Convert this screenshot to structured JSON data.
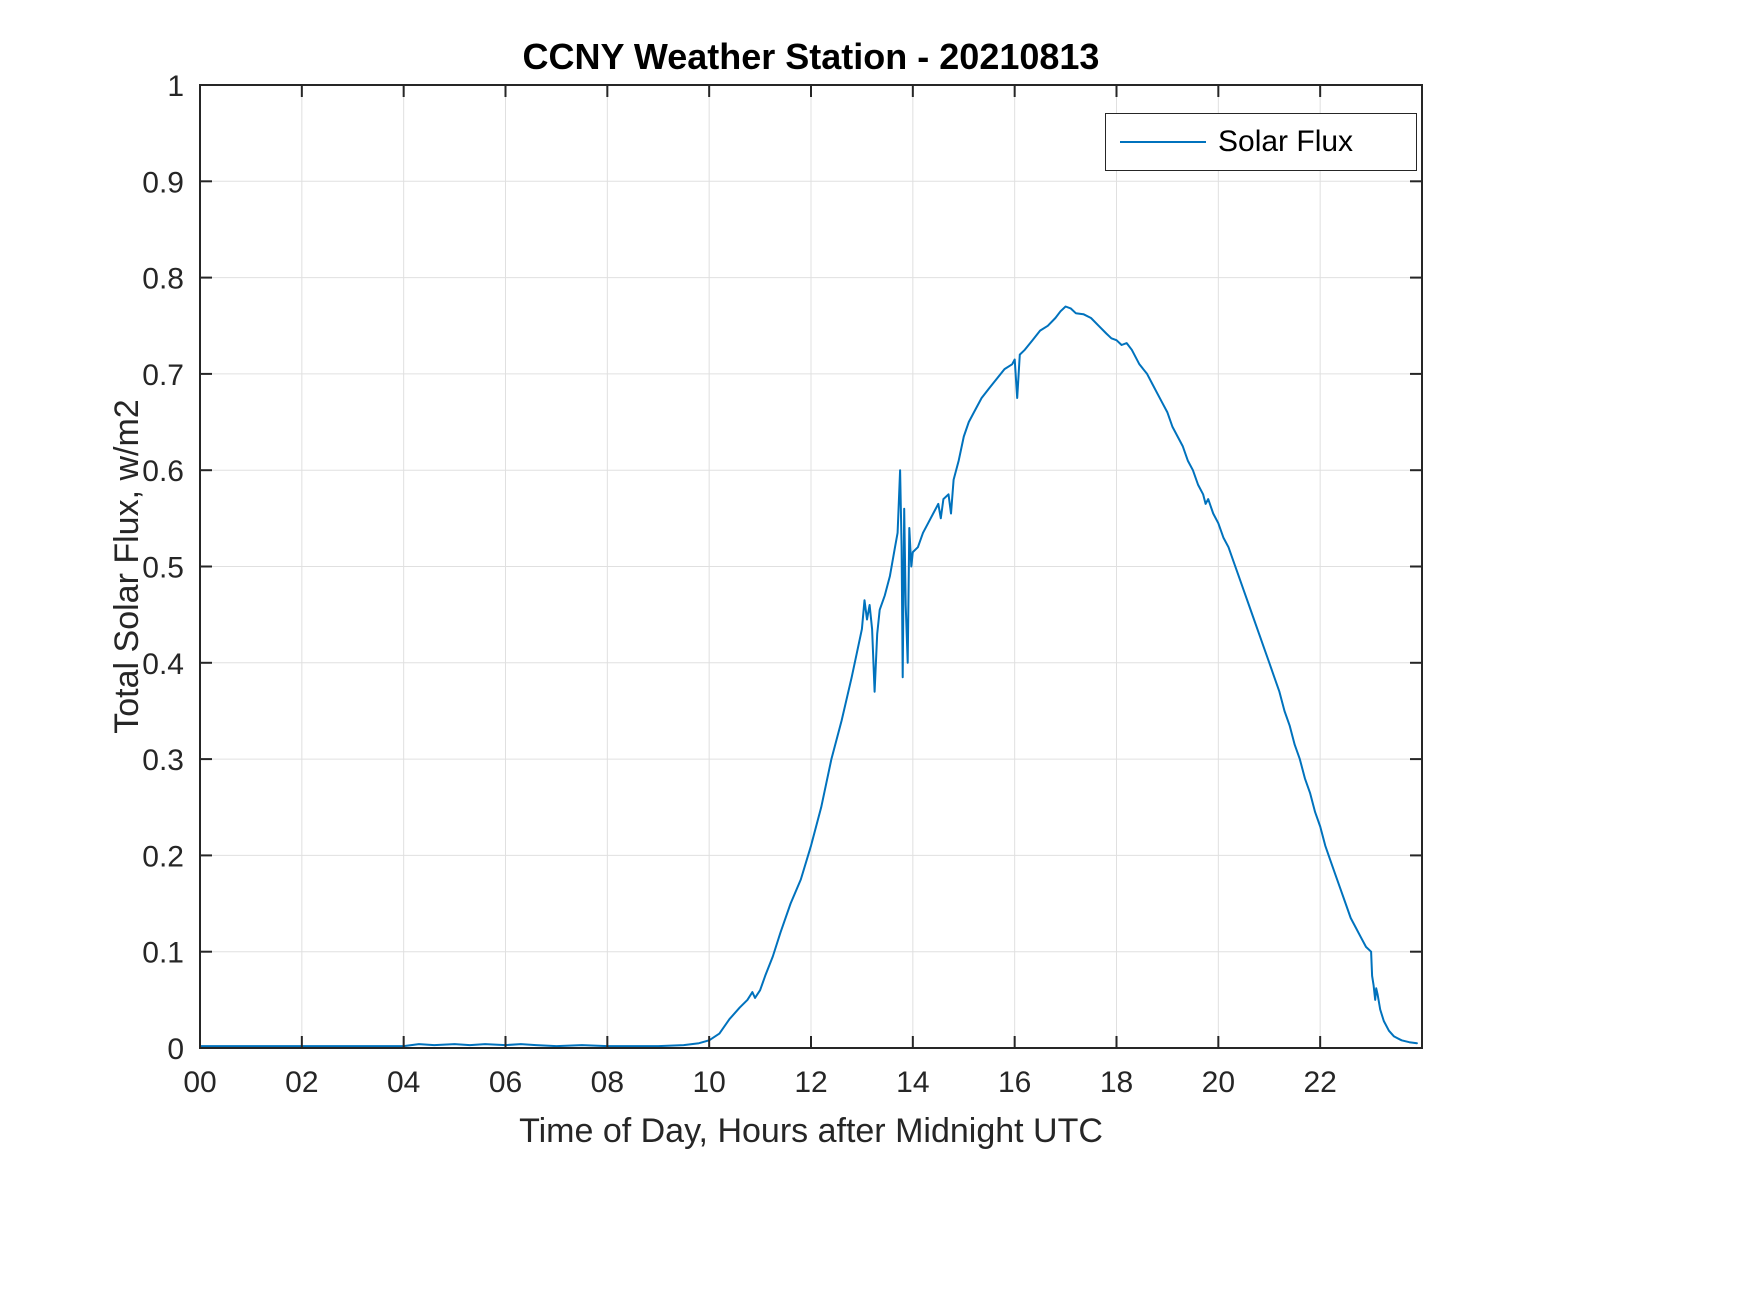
{
  "chart_data": {
    "type": "line",
    "title": "CCNY Weather Station - 20210813",
    "xlabel": "Time of Day, Hours after Midnight UTC",
    "ylabel": "Total Solar Flux, w/m2",
    "xlim": [
      0,
      24
    ],
    "ylim": [
      0,
      1
    ],
    "grid": true,
    "grid_color": "#e0e0e0",
    "axis_color": "#262626",
    "xticks": {
      "values": [
        0,
        2,
        4,
        6,
        8,
        10,
        12,
        14,
        16,
        18,
        20,
        22
      ],
      "labels": [
        "00",
        "02",
        "04",
        "06",
        "08",
        "10",
        "12",
        "14",
        "16",
        "18",
        "20",
        "22"
      ]
    },
    "yticks": {
      "values": [
        0,
        0.1,
        0.2,
        0.3,
        0.4,
        0.5,
        0.6,
        0.7,
        0.8,
        0.9,
        1
      ],
      "labels": [
        "0",
        "0.1",
        "0.2",
        "0.3",
        "0.4",
        "0.5",
        "0.6",
        "0.7",
        "0.8",
        "0.9",
        "1"
      ]
    },
    "legend": {
      "position": "top-right",
      "entries": [
        {
          "label": "Solar Flux",
          "color": "#0072BD"
        }
      ]
    },
    "series": [
      {
        "name": "Solar Flux",
        "color": "#0072BD",
        "points": [
          [
            0,
            0.002
          ],
          [
            0.5,
            0.002
          ],
          [
            1,
            0.002
          ],
          [
            1.5,
            0.002
          ],
          [
            2,
            0.002
          ],
          [
            2.5,
            0.002
          ],
          [
            3,
            0.002
          ],
          [
            3.5,
            0.002
          ],
          [
            4,
            0.002
          ],
          [
            4.3,
            0.004
          ],
          [
            4.6,
            0.003
          ],
          [
            5,
            0.004
          ],
          [
            5.3,
            0.003
          ],
          [
            5.6,
            0.004
          ],
          [
            6,
            0.003
          ],
          [
            6.3,
            0.004
          ],
          [
            6.6,
            0.003
          ],
          [
            7,
            0.002
          ],
          [
            7.5,
            0.003
          ],
          [
            8,
            0.002
          ],
          [
            8.5,
            0.002
          ],
          [
            9,
            0.002
          ],
          [
            9.5,
            0.003
          ],
          [
            9.8,
            0.005
          ],
          [
            10,
            0.008
          ],
          [
            10.2,
            0.015
          ],
          [
            10.4,
            0.03
          ],
          [
            10.6,
            0.042
          ],
          [
            10.75,
            0.05
          ],
          [
            10.85,
            0.058
          ],
          [
            10.9,
            0.052
          ],
          [
            11,
            0.06
          ],
          [
            11.1,
            0.075
          ],
          [
            11.25,
            0.095
          ],
          [
            11.4,
            0.12
          ],
          [
            11.6,
            0.15
          ],
          [
            11.8,
            0.175
          ],
          [
            12,
            0.21
          ],
          [
            12.2,
            0.25
          ],
          [
            12.4,
            0.3
          ],
          [
            12.6,
            0.34
          ],
          [
            12.8,
            0.385
          ],
          [
            12.9,
            0.41
          ],
          [
            13,
            0.435
          ],
          [
            13.05,
            0.465
          ],
          [
            13.1,
            0.445
          ],
          [
            13.15,
            0.46
          ],
          [
            13.2,
            0.435
          ],
          [
            13.25,
            0.37
          ],
          [
            13.3,
            0.43
          ],
          [
            13.35,
            0.455
          ],
          [
            13.45,
            0.47
          ],
          [
            13.55,
            0.49
          ],
          [
            13.65,
            0.52
          ],
          [
            13.7,
            0.535
          ],
          [
            13.75,
            0.6
          ],
          [
            13.78,
            0.52
          ],
          [
            13.8,
            0.385
          ],
          [
            13.83,
            0.56
          ],
          [
            13.86,
            0.46
          ],
          [
            13.9,
            0.4
          ],
          [
            13.93,
            0.54
          ],
          [
            13.97,
            0.5
          ],
          [
            14,
            0.515
          ],
          [
            14.1,
            0.52
          ],
          [
            14.2,
            0.535
          ],
          [
            14.3,
            0.545
          ],
          [
            14.4,
            0.555
          ],
          [
            14.5,
            0.565
          ],
          [
            14.55,
            0.55
          ],
          [
            14.6,
            0.57
          ],
          [
            14.7,
            0.575
          ],
          [
            14.75,
            0.555
          ],
          [
            14.8,
            0.59
          ],
          [
            14.9,
            0.61
          ],
          [
            15,
            0.635
          ],
          [
            15.1,
            0.65
          ],
          [
            15.2,
            0.66
          ],
          [
            15.35,
            0.675
          ],
          [
            15.5,
            0.685
          ],
          [
            15.65,
            0.695
          ],
          [
            15.8,
            0.705
          ],
          [
            15.95,
            0.71
          ],
          [
            16,
            0.715
          ],
          [
            16.05,
            0.675
          ],
          [
            16.1,
            0.72
          ],
          [
            16.2,
            0.725
          ],
          [
            16.35,
            0.735
          ],
          [
            16.5,
            0.745
          ],
          [
            16.65,
            0.75
          ],
          [
            16.8,
            0.758
          ],
          [
            16.9,
            0.765
          ],
          [
            17,
            0.77
          ],
          [
            17.1,
            0.768
          ],
          [
            17.2,
            0.763
          ],
          [
            17.35,
            0.762
          ],
          [
            17.5,
            0.758
          ],
          [
            17.65,
            0.75
          ],
          [
            17.8,
            0.742
          ],
          [
            17.9,
            0.737
          ],
          [
            18,
            0.735
          ],
          [
            18.1,
            0.73
          ],
          [
            18.2,
            0.732
          ],
          [
            18.3,
            0.725
          ],
          [
            18.45,
            0.71
          ],
          [
            18.6,
            0.7
          ],
          [
            18.7,
            0.69
          ],
          [
            18.8,
            0.68
          ],
          [
            18.9,
            0.67
          ],
          [
            19,
            0.66
          ],
          [
            19.1,
            0.645
          ],
          [
            19.2,
            0.635
          ],
          [
            19.3,
            0.625
          ],
          [
            19.4,
            0.61
          ],
          [
            19.5,
            0.6
          ],
          [
            19.6,
            0.585
          ],
          [
            19.7,
            0.575
          ],
          [
            19.75,
            0.565
          ],
          [
            19.8,
            0.57
          ],
          [
            19.9,
            0.555
          ],
          [
            20,
            0.545
          ],
          [
            20.1,
            0.53
          ],
          [
            20.2,
            0.52
          ],
          [
            20.3,
            0.505
          ],
          [
            20.4,
            0.49
          ],
          [
            20.5,
            0.475
          ],
          [
            20.6,
            0.46
          ],
          [
            20.7,
            0.445
          ],
          [
            20.8,
            0.43
          ],
          [
            20.9,
            0.415
          ],
          [
            21,
            0.4
          ],
          [
            21.1,
            0.385
          ],
          [
            21.2,
            0.37
          ],
          [
            21.3,
            0.35
          ],
          [
            21.4,
            0.335
          ],
          [
            21.5,
            0.315
          ],
          [
            21.6,
            0.3
          ],
          [
            21.7,
            0.28
          ],
          [
            21.8,
            0.265
          ],
          [
            21.9,
            0.245
          ],
          [
            22,
            0.23
          ],
          [
            22.1,
            0.21
          ],
          [
            22.2,
            0.195
          ],
          [
            22.3,
            0.18
          ],
          [
            22.4,
            0.165
          ],
          [
            22.5,
            0.15
          ],
          [
            22.6,
            0.135
          ],
          [
            22.7,
            0.125
          ],
          [
            22.8,
            0.115
          ],
          [
            22.9,
            0.105
          ],
          [
            23,
            0.1
          ],
          [
            23.02,
            0.075
          ],
          [
            23.05,
            0.065
          ],
          [
            23.08,
            0.05
          ],
          [
            23.1,
            0.062
          ],
          [
            23.13,
            0.055
          ],
          [
            23.18,
            0.04
          ],
          [
            23.25,
            0.028
          ],
          [
            23.35,
            0.018
          ],
          [
            23.45,
            0.012
          ],
          [
            23.6,
            0.008
          ],
          [
            23.75,
            0.006
          ],
          [
            23.9,
            0.005
          ]
        ]
      }
    ]
  }
}
